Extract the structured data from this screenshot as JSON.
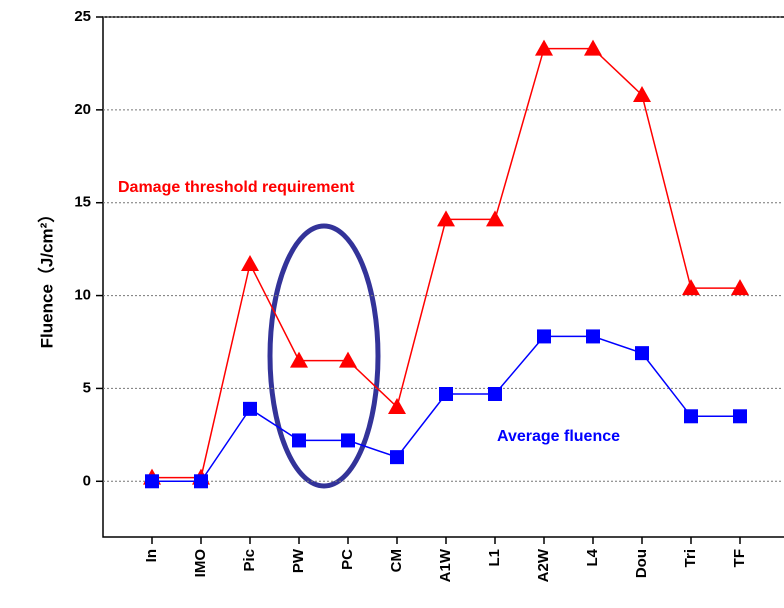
{
  "chart_data": {
    "type": "line",
    "y_label": "Fluence（J/cm²）",
    "categories": [
      "In",
      "IMO",
      "Pic",
      "PW",
      "PC",
      "CM",
      "A1W",
      "L1",
      "A2W",
      "L4",
      "Dou",
      "Tri",
      "TF"
    ],
    "series": [
      {
        "name": "Damage threshold requirement",
        "color": "#ff0000",
        "marker": "triangle",
        "values": [
          0.2,
          0.2,
          11.7,
          6.5,
          6.5,
          4.0,
          14.1,
          14.1,
          23.3,
          23.3,
          20.8,
          10.4,
          10.4
        ]
      },
      {
        "name": "Average fluence",
        "color": "#0000ff",
        "marker": "square",
        "values": [
          0,
          0,
          3.9,
          2.2,
          2.2,
          1.3,
          4.7,
          4.7,
          7.8,
          7.8,
          6.9,
          3.5,
          3.5
        ]
      }
    ],
    "ylim": [
      -3,
      25
    ],
    "yticks": [
      0,
      5,
      10,
      15,
      20,
      25
    ]
  }
}
